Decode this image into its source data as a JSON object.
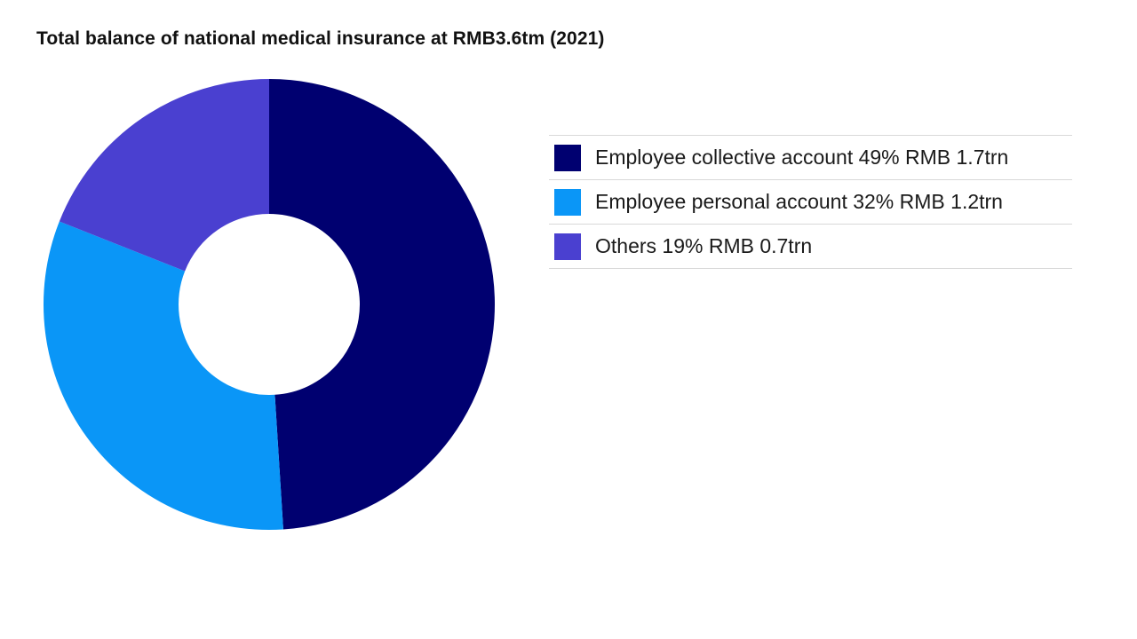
{
  "chart_data": {
    "type": "pie",
    "title": "Total balance of national medical insurance at RMB3.6tm (2021)",
    "donut": true,
    "legend_position": "right",
    "categories": [
      "Employee collective account",
      "Employee personal account",
      "Others"
    ],
    "values": [
      49,
      32,
      19
    ],
    "unit": "%",
    "legend": [
      "Employee collective account 49% RMB 1.7trn",
      "Employee personal account 32% RMB 1.2trn",
      "Others 19% RMB 0.7trn"
    ],
    "colors": [
      "#000070",
      "#0a96f7",
      "#4a40d0"
    ]
  }
}
